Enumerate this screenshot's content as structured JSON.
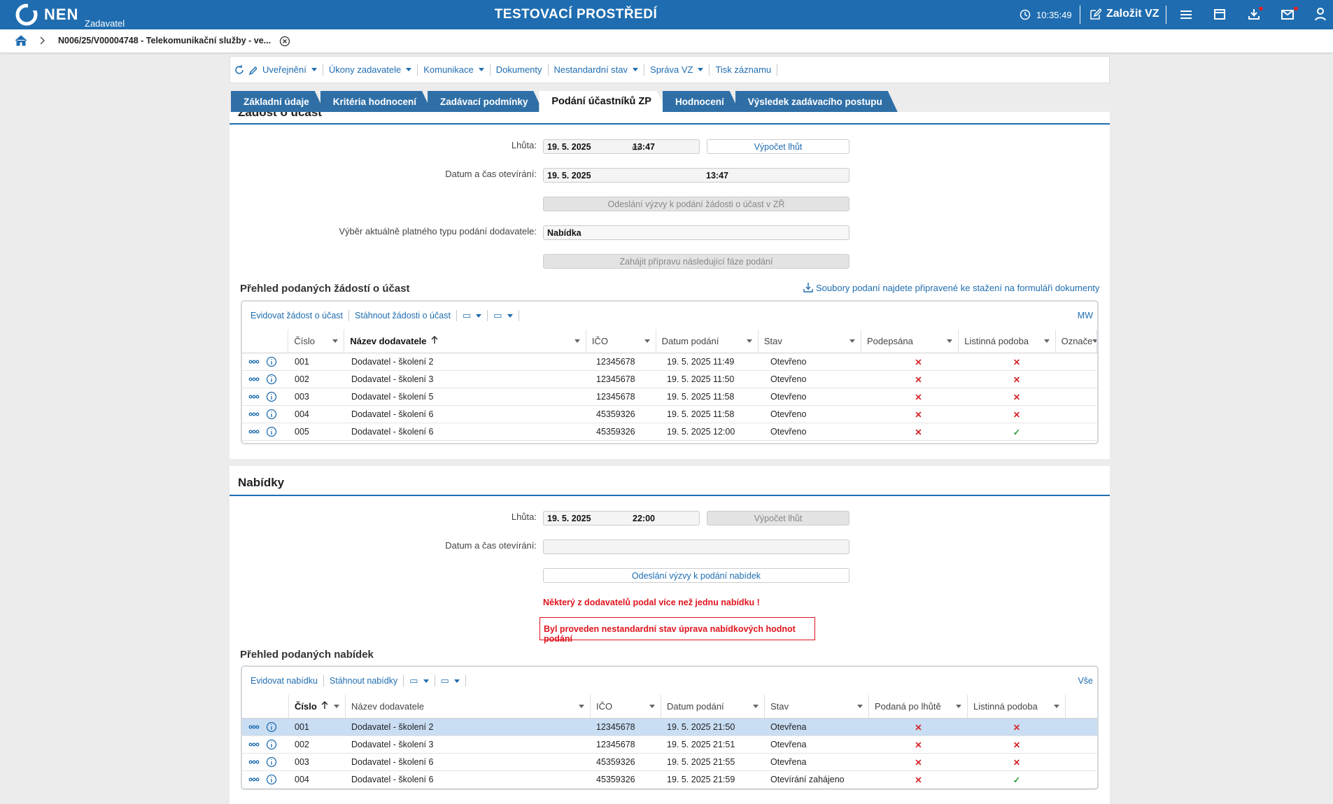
{
  "header": {
    "logo": "NEN",
    "role": "Zadavatel",
    "title": "TESTOVACÍ PROSTŘEDÍ",
    "time": "10:35:49",
    "create": "Založit VZ"
  },
  "breadcrumb": "N006/25/V00004748 - Telekomunikační služby - ve...",
  "toolbar": [
    "Uveřejnění",
    "Úkony zadavatele",
    "Komunikace",
    "Dokumenty",
    "Nestandardní stav",
    "Správa VZ",
    "Tisk záznamu"
  ],
  "tabs": [
    "Základní údaje",
    "Kritéria hodnocení",
    "Zadávací podmínky",
    "Podání účastníků ZP",
    "Hodnocení",
    "Výsledek zadávacího postupu"
  ],
  "active_tab": 3,
  "requests": {
    "title": "Žádost o účast",
    "deadline_label": "Lhůta:",
    "deadline_date": "19. 5. 2025",
    "deadline_time": "13:47",
    "calc_button": "Výpočet lhůt",
    "opening_label": "Datum a čas otevírání:",
    "opening_date": "19. 5. 2025",
    "opening_time": "13:47",
    "send_button": "Odeslání výzvy k podání žádosti o účast v ZŘ",
    "type_label": "Výběr aktuálně platného typu podání dodavatele:",
    "type_value": "Nabídka",
    "phase_button": "Zahájit přípravu následující fáze podání",
    "overview_title": "Přehled podaných žádostí o účast",
    "download_note": "Soubory podaní najdete připravené ke stažení na formuláři dokumenty",
    "actions": [
      "Evidovat žádost o účast",
      "Stáhnout žádosti o účast"
    ],
    "filter_label": "MW",
    "columns": [
      "Číslo",
      "Název dodavatele",
      "IČO",
      "Datum podání",
      "Stav",
      "Podepsána",
      "Listinná podoba",
      "Označe"
    ],
    "rows": [
      [
        "001",
        "Dodavatel - školení 2",
        "12345678",
        "19. 5. 2025 11:49",
        "Otevřeno",
        "✕",
        "✕"
      ],
      [
        "002",
        "Dodavatel - školení 3",
        "12345678",
        "19. 5. 2025 11:50",
        "Otevřeno",
        "✕",
        "✕"
      ],
      [
        "003",
        "Dodavatel - školení 5",
        "12345678",
        "19. 5. 2025 11:58",
        "Otevřeno",
        "✕",
        "✕"
      ],
      [
        "004",
        "Dodavatel - školení 6",
        "45359326",
        "19. 5. 2025 11:58",
        "Otevřeno",
        "✕",
        "✕"
      ],
      [
        "005",
        "Dodavatel - školení 6",
        "45359326",
        "19. 5. 2025 12:00",
        "Otevřeno",
        "✕",
        "✓"
      ]
    ]
  },
  "offers": {
    "title": "Nabídky",
    "deadline_label": "Lhůta:",
    "deadline_date": "19. 5. 2025",
    "deadline_time": "22:00",
    "calc_button": "Výpočet lhůt",
    "opening_label": "Datum a čas otevírání:",
    "send_button": "Odeslání výzvy k podání nabídek",
    "warning": "Některý z dodavatelů podal více než jednu nabídku !",
    "notice": "Byl proveden nestandardní stav úprava nabídkových hodnot podání",
    "overview_title": "Přehled podaných nabídek",
    "actions": [
      "Evidovat nabídku",
      "Stáhnout nabídky"
    ],
    "filter_label": "Vše",
    "columns": [
      "Číslo",
      "Název dodavatele",
      "IČO",
      "Datum podání",
      "Stav",
      "Podaná po lhůtě",
      "Listinná podoba"
    ],
    "rows": [
      [
        "001",
        "Dodavatel - školení 2",
        "12345678",
        "19. 5. 2025 21:50",
        "Otevřena",
        "✕",
        "✕"
      ],
      [
        "002",
        "Dodavatel - školení 3",
        "12345678",
        "19. 5. 2025 21:51",
        "Otevřena",
        "✕",
        "✕"
      ],
      [
        "003",
        "Dodavatel - školení 6",
        "45359326",
        "19. 5. 2025 21:55",
        "Otevřena",
        "✕",
        "✕"
      ],
      [
        "004",
        "Dodavatel - školení 6",
        "45359326",
        "19. 5. 2025 21:59",
        "Otevírání zahájeno",
        "✕",
        "✓"
      ]
    ]
  }
}
